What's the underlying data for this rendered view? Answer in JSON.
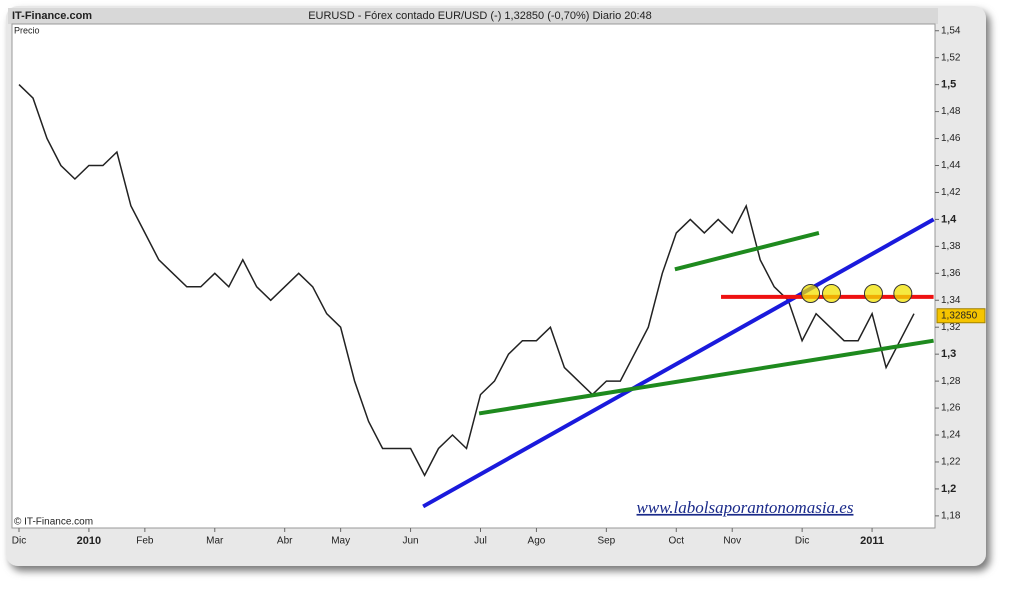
{
  "header": {
    "site": "IT-Finance.com",
    "title": "EURUSD - Fórex contado EUR/USD (-)    1,32850 (-0,70%)    Diario  20:48"
  },
  "chart_data": {
    "type": "line",
    "y_label": "Precio",
    "copyright": "© IT-Finance.com",
    "watermark": "www.labolsaporantonomasia.es",
    "color": "#222222",
    "categories": [
      "Dic",
      null,
      null,
      null,
      null,
      "2010",
      null,
      null,
      null,
      "Feb",
      null,
      null,
      null,
      null,
      "Mar",
      null,
      null,
      null,
      null,
      "Abr",
      null,
      null,
      null,
      "May",
      null,
      null,
      null,
      null,
      "Jun",
      null,
      null,
      null,
      null,
      "Jul",
      null,
      null,
      null,
      "Ago",
      null,
      null,
      null,
      null,
      "Sep",
      null,
      null,
      null,
      null,
      "Oct",
      null,
      null,
      null,
      "Nov",
      null,
      null,
      null,
      null,
      "Dic",
      null,
      null,
      null,
      null,
      "2011",
      null,
      null,
      null,
      null
    ],
    "values": [
      1.5,
      1.49,
      1.46,
      1.44,
      1.43,
      1.44,
      1.44,
      1.45,
      1.41,
      1.39,
      1.37,
      1.36,
      1.35,
      1.35,
      1.36,
      1.35,
      1.37,
      1.35,
      1.34,
      1.35,
      1.36,
      1.35,
      1.33,
      1.32,
      1.28,
      1.25,
      1.23,
      1.23,
      1.23,
      1.21,
      1.23,
      1.24,
      1.23,
      1.27,
      1.28,
      1.3,
      1.31,
      1.31,
      1.32,
      1.29,
      1.28,
      1.27,
      1.28,
      1.28,
      1.3,
      1.32,
      1.36,
      1.39,
      1.4,
      1.39,
      1.4,
      1.39,
      1.41,
      1.37,
      1.35,
      1.34,
      1.31,
      1.33,
      1.32,
      1.31,
      1.31,
      1.33,
      1.29,
      1.31,
      1.33,
      null
    ],
    "ylim": [
      1.171,
      1.545
    ],
    "yticks": [
      {
        "value": 1.18,
        "label": "1,18"
      },
      {
        "value": 1.2,
        "label": "1,2"
      },
      {
        "value": 1.22,
        "label": "1,22"
      },
      {
        "value": 1.24,
        "label": "1,24"
      },
      {
        "value": 1.26,
        "label": "1,26"
      },
      {
        "value": 1.28,
        "label": "1,28"
      },
      {
        "value": 1.3,
        "label": "1,3"
      },
      {
        "value": 1.32,
        "label": "1,32"
      },
      {
        "value": 1.34,
        "label": "1,34"
      },
      {
        "value": 1.36,
        "label": "1,36"
      },
      {
        "value": 1.38,
        "label": "1,38"
      },
      {
        "value": 1.4,
        "label": "1,4"
      },
      {
        "value": 1.42,
        "label": "1,42"
      },
      {
        "value": 1.44,
        "label": "1,44"
      },
      {
        "value": 1.46,
        "label": "1,46"
      },
      {
        "value": 1.48,
        "label": "1,48"
      },
      {
        "value": 1.5,
        "label": "1,5"
      },
      {
        "value": 1.52,
        "label": "1,52"
      },
      {
        "value": 1.54,
        "label": "1,54"
      }
    ],
    "last_price": {
      "value": 1.3285,
      "label": "1,32850"
    },
    "trendlines": [
      {
        "color": "#1a1adc",
        "x": [
          28.9,
          65.4
        ],
        "y": [
          1.187,
          1.4
        ]
      },
      {
        "color": "#1e8a1e",
        "x": [
          32.9,
          65.4
        ],
        "y": [
          1.256,
          1.31
        ]
      },
      {
        "color": "#1e8a1e",
        "x": [
          46.9,
          57.2
        ],
        "y": [
          1.363,
          1.39
        ]
      },
      {
        "color": "#ee1111",
        "x": [
          50.2,
          65.4
        ],
        "y": [
          1.3425,
          1.3425
        ]
      }
    ],
    "circles": {
      "color": "#f2e200",
      "x": [
        56.6,
        58.1,
        61.1,
        63.2
      ],
      "y": [
        1.345,
        1.345,
        1.345,
        1.345
      ]
    }
  }
}
